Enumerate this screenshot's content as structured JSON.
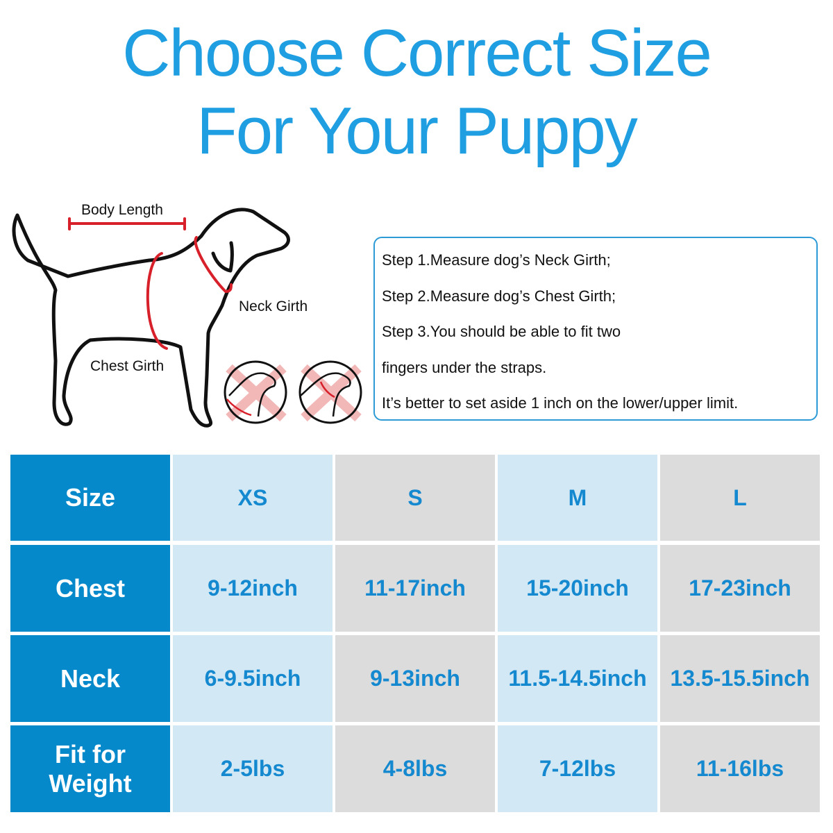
{
  "title": {
    "line1": "Choose Correct Size",
    "line2": "For Your Puppy"
  },
  "diagram": {
    "body_length_label": "Body Length",
    "neck_girth_label": "Neck Girth",
    "chest_girth_label": "Chest Girth",
    "icons": [
      "wrong-fit-x-icon",
      "wrong-fit-x-icon"
    ],
    "colors": {
      "outline": "#111111",
      "measure": "#d8202a",
      "cross": "#f2b8b8"
    }
  },
  "steps": [
    "Step 1.Measure dog’s Neck Girth;",
    "Step 2.Measure dog’s Chest Girth;",
    "Step 3.You should be able to fit two",
    "fingers under the straps.",
    "It’s better to set aside 1 inch on the lower/upper limit."
  ],
  "table": {
    "rows": [
      {
        "header": "Size",
        "values": [
          "XS",
          "S",
          "M",
          "L"
        ]
      },
      {
        "header": "Chest",
        "values": [
          "9-12inch",
          "11-17inch",
          "15-20inch",
          "17-23inch"
        ]
      },
      {
        "header": "Neck",
        "values": [
          "6-9.5inch",
          "9-13inch",
          "11.5-14.5inch",
          "13.5-15.5inch"
        ]
      },
      {
        "header": "Fit for Weight",
        "values": [
          "2-5lbs",
          "4-8lbs",
          "7-12lbs",
          "11-16lbs"
        ]
      }
    ],
    "colors": {
      "header": "#0589cb",
      "light_blue": "#d3e8f5",
      "gray": "#dcdcdc",
      "value_text": "#1589cf"
    }
  }
}
